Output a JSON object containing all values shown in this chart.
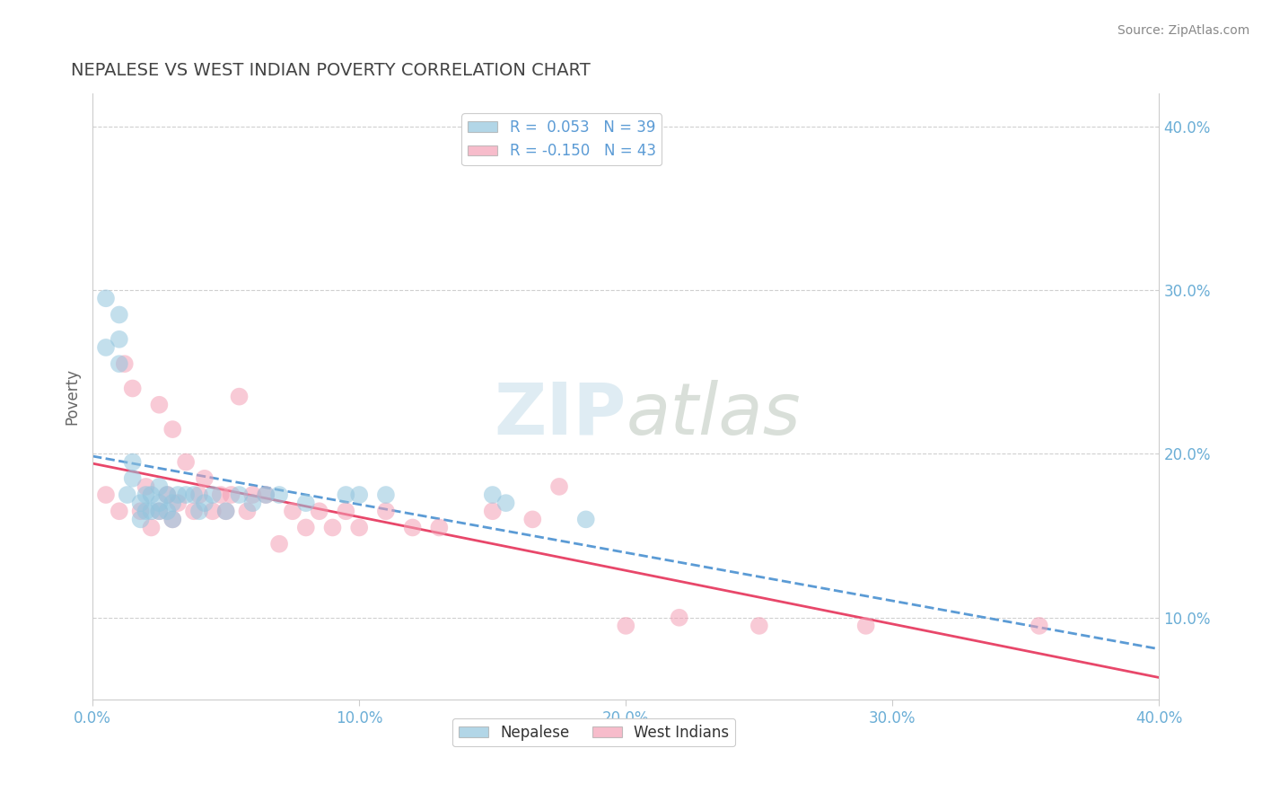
{
  "title": "NEPALESE VS WEST INDIAN POVERTY CORRELATION CHART",
  "source": "Source: ZipAtlas.com",
  "ylabel": "Poverty",
  "xlim": [
    0.0,
    0.4
  ],
  "ylim": [
    0.05,
    0.42
  ],
  "xtick_vals": [
    0.0,
    0.1,
    0.2,
    0.3,
    0.4
  ],
  "xtick_labels": [
    "0.0%",
    "10.0%",
    "20.0%",
    "30.0%",
    "40.0%"
  ],
  "ytick_vals": [
    0.1,
    0.2,
    0.3,
    0.4
  ],
  "ytick_labels": [
    "10.0%",
    "20.0%",
    "30.0%",
    "40.0%"
  ],
  "r_nepalese": 0.053,
  "n_nepalese": 39,
  "r_west_indian": -0.15,
  "n_west_indian": 43,
  "nepalese_color": "#92c5de",
  "west_indian_color": "#f4a0b5",
  "trend_nepalese_color": "#5b9bd5",
  "trend_west_indian_color": "#e8476a",
  "background_color": "#ffffff",
  "grid_color": "#d0d0d0",
  "nepalese_x": [
    0.005,
    0.005,
    0.01,
    0.01,
    0.01,
    0.013,
    0.015,
    0.015,
    0.018,
    0.018,
    0.02,
    0.02,
    0.022,
    0.022,
    0.025,
    0.025,
    0.025,
    0.028,
    0.028,
    0.03,
    0.03,
    0.032,
    0.035,
    0.038,
    0.04,
    0.042,
    0.045,
    0.05,
    0.055,
    0.06,
    0.065,
    0.07,
    0.08,
    0.095,
    0.1,
    0.11,
    0.15,
    0.155,
    0.185
  ],
  "nepalese_y": [
    0.265,
    0.295,
    0.255,
    0.27,
    0.285,
    0.175,
    0.185,
    0.195,
    0.16,
    0.17,
    0.165,
    0.175,
    0.165,
    0.175,
    0.165,
    0.17,
    0.18,
    0.165,
    0.175,
    0.16,
    0.17,
    0.175,
    0.175,
    0.175,
    0.165,
    0.17,
    0.175,
    0.165,
    0.175,
    0.17,
    0.175,
    0.175,
    0.17,
    0.175,
    0.175,
    0.175,
    0.175,
    0.17,
    0.16
  ],
  "west_indian_x": [
    0.005,
    0.01,
    0.012,
    0.015,
    0.018,
    0.02,
    0.022,
    0.025,
    0.025,
    0.028,
    0.03,
    0.03,
    0.032,
    0.035,
    0.038,
    0.04,
    0.042,
    0.045,
    0.048,
    0.05,
    0.052,
    0.055,
    0.058,
    0.06,
    0.065,
    0.07,
    0.075,
    0.08,
    0.085,
    0.09,
    0.095,
    0.1,
    0.11,
    0.12,
    0.13,
    0.15,
    0.165,
    0.175,
    0.2,
    0.22,
    0.25,
    0.29,
    0.355
  ],
  "west_indian_y": [
    0.175,
    0.165,
    0.255,
    0.24,
    0.165,
    0.18,
    0.155,
    0.165,
    0.23,
    0.175,
    0.16,
    0.215,
    0.17,
    0.195,
    0.165,
    0.175,
    0.185,
    0.165,
    0.175,
    0.165,
    0.175,
    0.235,
    0.165,
    0.175,
    0.175,
    0.145,
    0.165,
    0.155,
    0.165,
    0.155,
    0.165,
    0.155,
    0.165,
    0.155,
    0.155,
    0.165,
    0.16,
    0.18,
    0.095,
    0.1,
    0.095,
    0.095,
    0.095
  ]
}
